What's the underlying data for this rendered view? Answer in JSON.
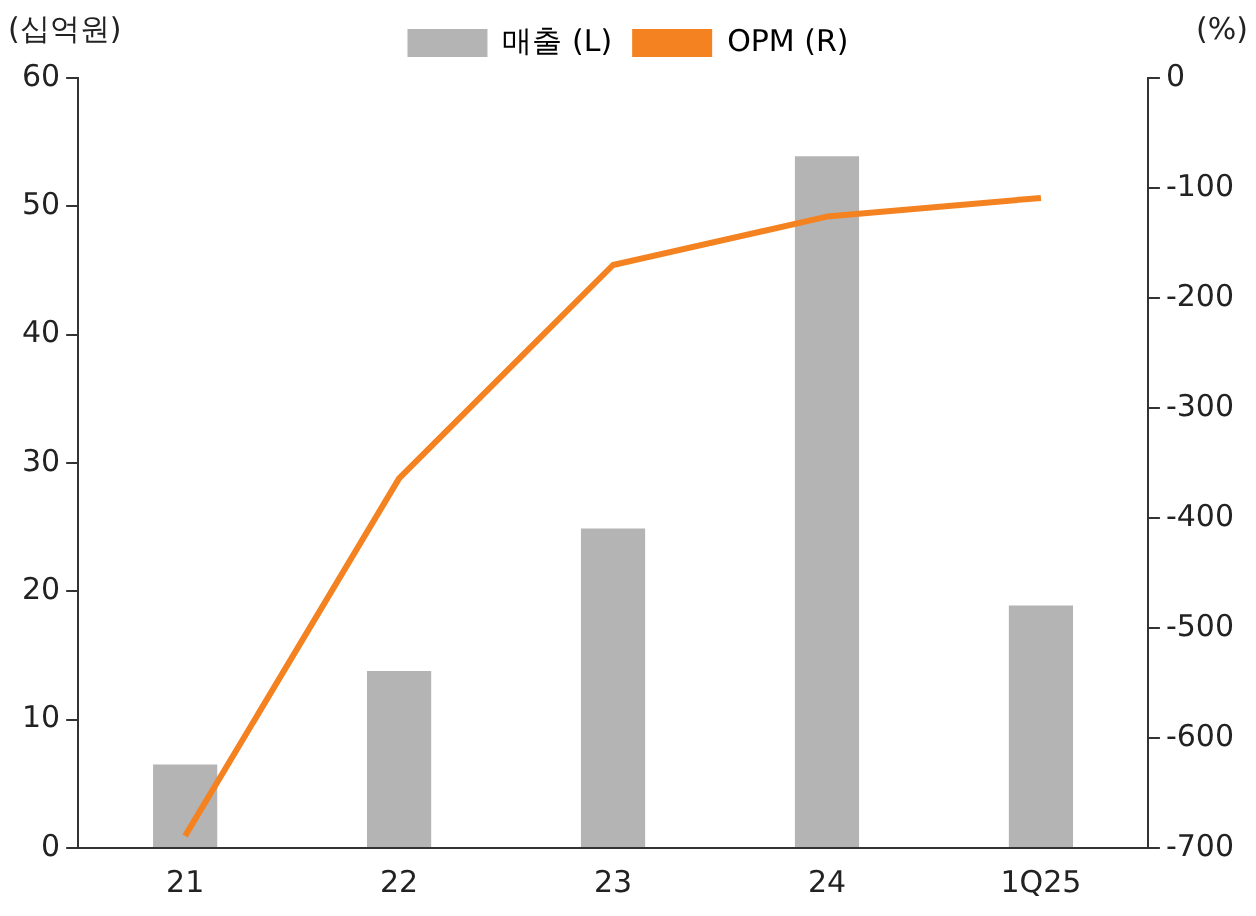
{
  "chart_data": {
    "type": "bar",
    "ylabel": "(십억원)",
    "y2label": "(%)",
    "categories": [
      "21",
      "22",
      "23",
      "24",
      "1Q25"
    ],
    "series": [
      {
        "name": "매출 (L)",
        "color": "#b4b4b5",
        "values": [
          6.5,
          13.8,
          24.9,
          53.9,
          18.9
        ]
      },
      {
        "name": "OPM (R)",
        "type": "line",
        "axis": "y2",
        "color": "#f58220",
        "values": [
          -689,
          -364,
          -170,
          -126,
          -109
        ]
      }
    ],
    "ylim": [
      0,
      60
    ],
    "yticks": [
      0,
      10,
      20,
      30,
      40,
      50,
      60
    ],
    "y2lim": [
      -700,
      0
    ],
    "y2ticks": [
      -700,
      -600,
      -500,
      -400,
      -300,
      -200,
      -100,
      0
    ],
    "grid": false,
    "legend": "top",
    "marker": "none"
  }
}
